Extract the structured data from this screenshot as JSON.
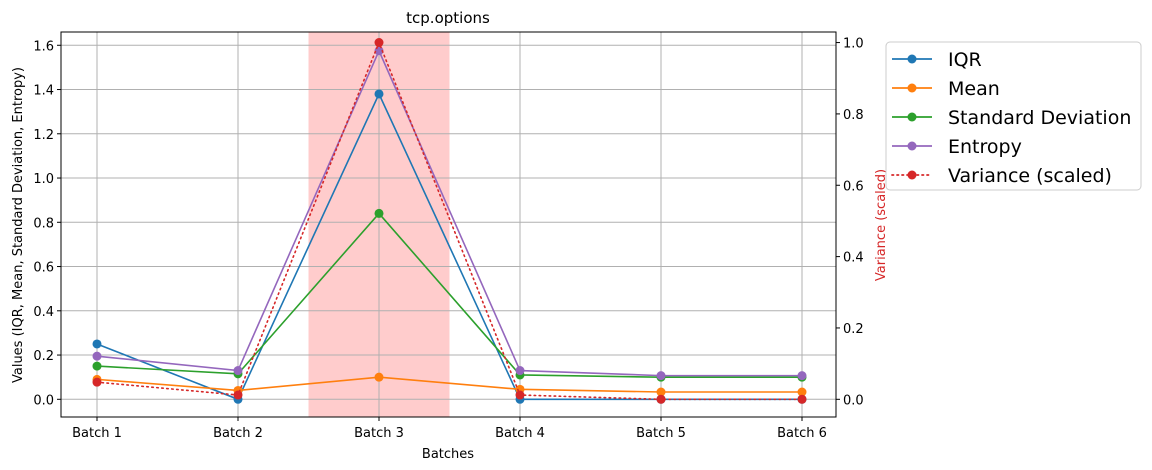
{
  "chart_data": {
    "type": "line",
    "title": "tcp.options",
    "xlabel": "Batches",
    "ylabel": "Values (IQR, Mean, Standard Deviation, Entropy)",
    "ylabel_right": "Variance (scaled)",
    "ylabel_right_color": "#d62728",
    "categories": [
      "Batch 1",
      "Batch 2",
      "Batch 3",
      "Batch 4",
      "Batch 5",
      "Batch 6"
    ],
    "ylim": [
      -0.08,
      1.66
    ],
    "ylim_right": [
      -0.0496,
      1.0296
    ],
    "yticks": [
      0.0,
      0.2,
      0.4,
      0.6,
      0.8,
      1.0,
      1.2,
      1.4,
      1.6
    ],
    "yticks_right": [
      0.0,
      0.2,
      0.4,
      0.6,
      0.8,
      1.0
    ],
    "grid": true,
    "highlight": {
      "from": 1.5,
      "to": 2.5,
      "color": "#ffcccc"
    },
    "legend_position": "outside-right",
    "series": [
      {
        "name": "IQR",
        "color": "#1f77b4",
        "axis": "left",
        "style": "solid",
        "values": [
          0.25,
          0.0,
          1.38,
          0.0,
          0.0,
          0.0
        ]
      },
      {
        "name": "Mean",
        "color": "#ff7f0e",
        "axis": "left",
        "style": "solid",
        "values": [
          0.09,
          0.04,
          0.1,
          0.045,
          0.033,
          0.033
        ]
      },
      {
        "name": "Standard Deviation",
        "color": "#2ca02c",
        "axis": "left",
        "style": "solid",
        "values": [
          0.15,
          0.115,
          0.84,
          0.11,
          0.1,
          0.1
        ]
      },
      {
        "name": "Entropy",
        "color": "#9467bd",
        "axis": "left",
        "style": "solid",
        "values": [
          0.195,
          0.13,
          1.575,
          0.13,
          0.107,
          0.107
        ]
      },
      {
        "name": "Variance (scaled)",
        "color": "#d62728",
        "axis": "right",
        "style": "dotted",
        "values": [
          0.048,
          0.012,
          1.0,
          0.012,
          0.0,
          0.0
        ]
      }
    ]
  }
}
